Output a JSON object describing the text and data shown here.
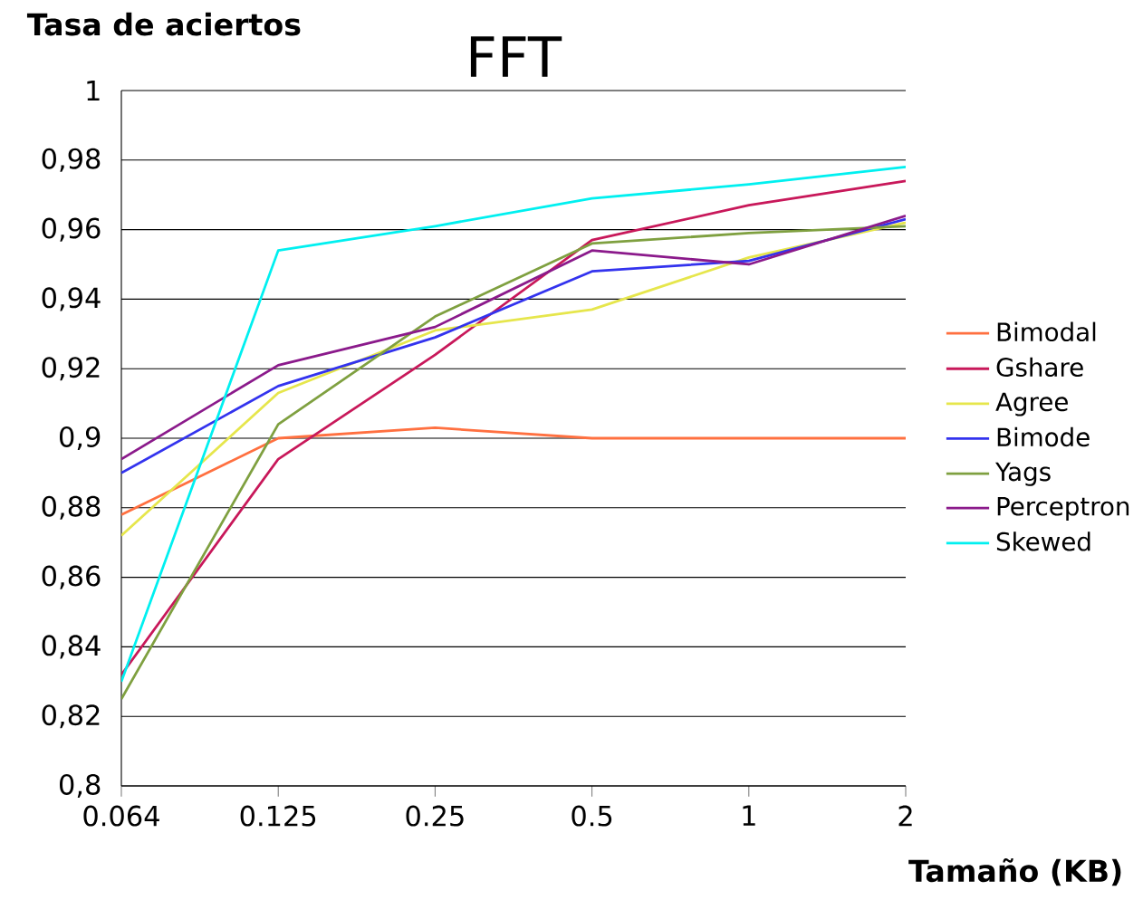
{
  "chart_data": {
    "type": "line",
    "title": "FFT",
    "xlabel": "Tamaño (KB)",
    "ylabel": "Tasa de aciertos",
    "categories": [
      "0.064",
      "0.125",
      "0.25",
      "0.5",
      "1",
      "2"
    ],
    "ylim": [
      0.8,
      1
    ],
    "yticks": [
      {
        "value": 0.8,
        "label": "0,8"
      },
      {
        "value": 0.82,
        "label": "0,82"
      },
      {
        "value": 0.84,
        "label": "0,84"
      },
      {
        "value": 0.86,
        "label": "0,86"
      },
      {
        "value": 0.88,
        "label": "0,88"
      },
      {
        "value": 0.9,
        "label": "0,9"
      },
      {
        "value": 0.92,
        "label": "0,92"
      },
      {
        "value": 0.94,
        "label": "0,94"
      },
      {
        "value": 0.96,
        "label": "0,96"
      },
      {
        "value": 0.98,
        "label": "0,98"
      },
      {
        "value": 1,
        "label": "1"
      }
    ],
    "grid": "y",
    "legend": "right",
    "marker": "none",
    "line_style": "solid",
    "series": [
      {
        "name": "Bimodal",
        "color": "#ff7040",
        "values": [
          0.878,
          0.9,
          0.903,
          0.9,
          0.9,
          0.9
        ]
      },
      {
        "name": "Gshare",
        "color": "#c8185a",
        "values": [
          0.832,
          0.894,
          0.924,
          0.957,
          0.967,
          0.974
        ]
      },
      {
        "name": "Agree",
        "color": "#e6e64c",
        "values": [
          0.872,
          0.913,
          0.931,
          0.937,
          0.952,
          0.962
        ]
      },
      {
        "name": "Bimode",
        "color": "#3333ee",
        "values": [
          0.89,
          0.915,
          0.929,
          0.948,
          0.951,
          0.963
        ]
      },
      {
        "name": "Yags",
        "color": "#7fa040",
        "values": [
          0.825,
          0.904,
          0.935,
          0.956,
          0.959,
          0.961
        ]
      },
      {
        "name": "Perceptron",
        "color": "#8b1a8b",
        "values": [
          0.894,
          0.921,
          0.932,
          0.954,
          0.95,
          0.964
        ]
      },
      {
        "name": "Skewed",
        "color": "#00f0f0",
        "values": [
          0.83,
          0.954,
          0.961,
          0.969,
          0.973,
          0.978
        ]
      }
    ]
  }
}
